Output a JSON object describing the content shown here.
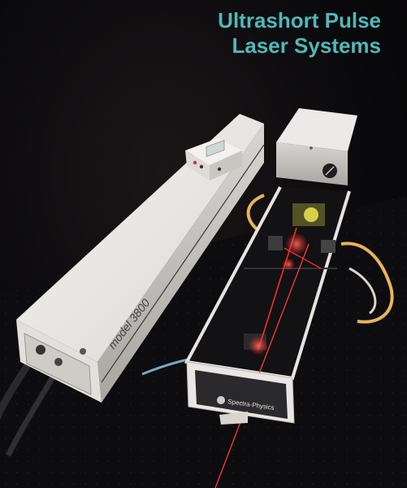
{
  "cover": {
    "title_line1": "Ultrashort Pulse",
    "title_line2": "Laser Systems"
  },
  "labels": {
    "model_text": "model 3800",
    "brand_text": "Spectra-Physics"
  },
  "colors": {
    "title": "#4fb8b9",
    "background": "#0b0a0c",
    "laser": "#ff2a2a",
    "housing": "#e9e7e6"
  }
}
